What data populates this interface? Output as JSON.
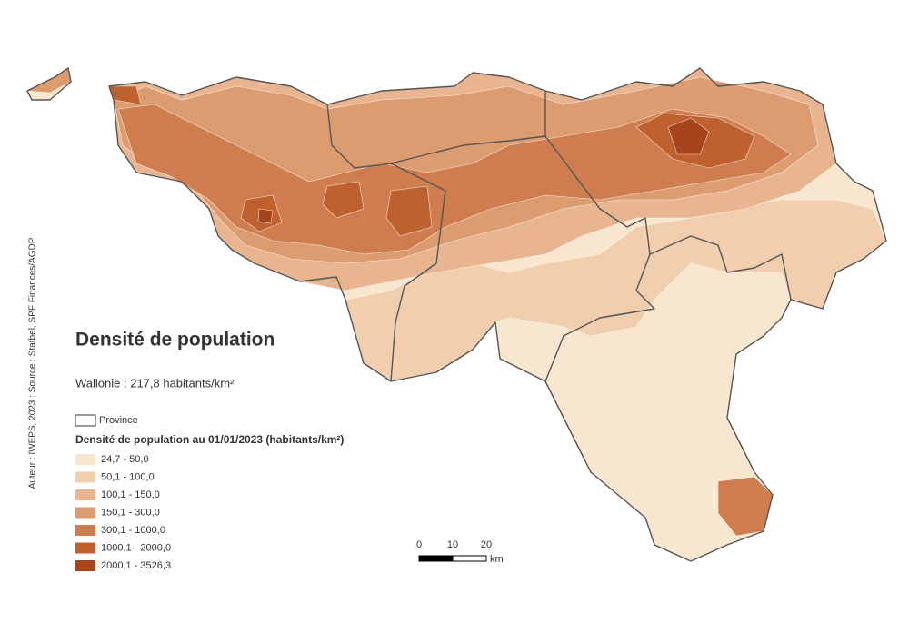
{
  "title": "Densité de population",
  "subtitle": "Wallonie : 217,8 habitants/km²",
  "credit": "Auteur : IWEPS, 2023 ; Source : Statbel, SPF Finances/AGDP",
  "legend": {
    "province_label": "Province",
    "heading": "Densité de population au 01/01/2023 (habitants/km²)",
    "classes": [
      {
        "label": "24,7 - 50,0",
        "color": "#f9e6cf"
      },
      {
        "label": "50,1 - 100,0",
        "color": "#f1ceae"
      },
      {
        "label": "100,1 - 150,0",
        "color": "#e8b590"
      },
      {
        "label": "150,1 - 300,0",
        "color": "#dd9b70"
      },
      {
        "label": "300,1 - 1000,0",
        "color": "#cf7d4e"
      },
      {
        "label": "1000,1 - 2000,0",
        "color": "#bf612f"
      },
      {
        "label": "2000,1 - 3526,3",
        "color": "#a8441b"
      }
    ]
  },
  "scale_bar": {
    "ticks": [
      "0",
      "10",
      "20"
    ],
    "unit": "km"
  }
}
